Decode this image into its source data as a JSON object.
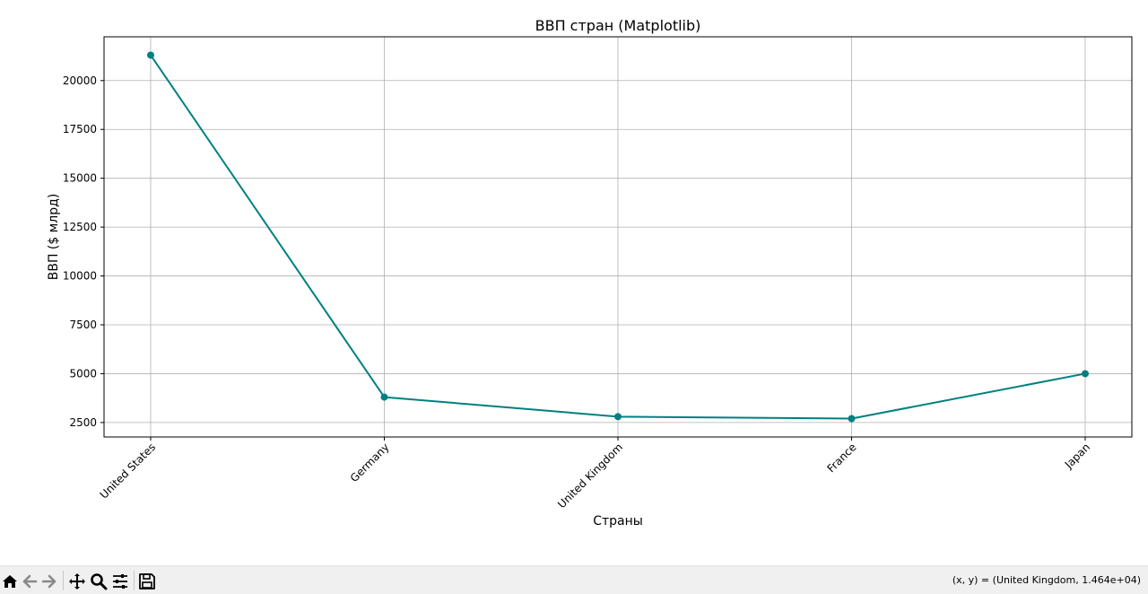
{
  "chart_data": {
    "type": "line",
    "title": "ВВП стран (Matplotlib)",
    "xlabel": "Страны",
    "ylabel": "ВВП ($ млрд)",
    "categories": [
      "United States",
      "Germany",
      "United Kingdom",
      "France",
      "Japan"
    ],
    "values": [
      21300,
      3800,
      2800,
      2700,
      5000
    ],
    "ylim": [
      1760,
      22240
    ],
    "yticks": [
      2500,
      5000,
      7500,
      10000,
      12500,
      15000,
      17500,
      20000
    ],
    "ytick_labels": [
      "2500",
      "5000",
      "7500",
      "10000",
      "12500",
      "15000",
      "17500",
      "20000"
    ],
    "grid": true,
    "marker": "circle",
    "color": "#008080"
  },
  "toolbar": {
    "buttons": [
      {
        "name": "home-icon",
        "title": "Home"
      },
      {
        "name": "back-icon",
        "title": "Back"
      },
      {
        "name": "forward-icon",
        "title": "Forward"
      },
      {
        "name": "pan-icon",
        "title": "Pan"
      },
      {
        "name": "zoom-icon",
        "title": "Zoom"
      },
      {
        "name": "configure-subplots-icon",
        "title": "Configure subplots"
      },
      {
        "name": "save-icon",
        "title": "Save"
      }
    ],
    "coordinates": "(x, y) = (United Kingdom, 1.464e+04)"
  }
}
